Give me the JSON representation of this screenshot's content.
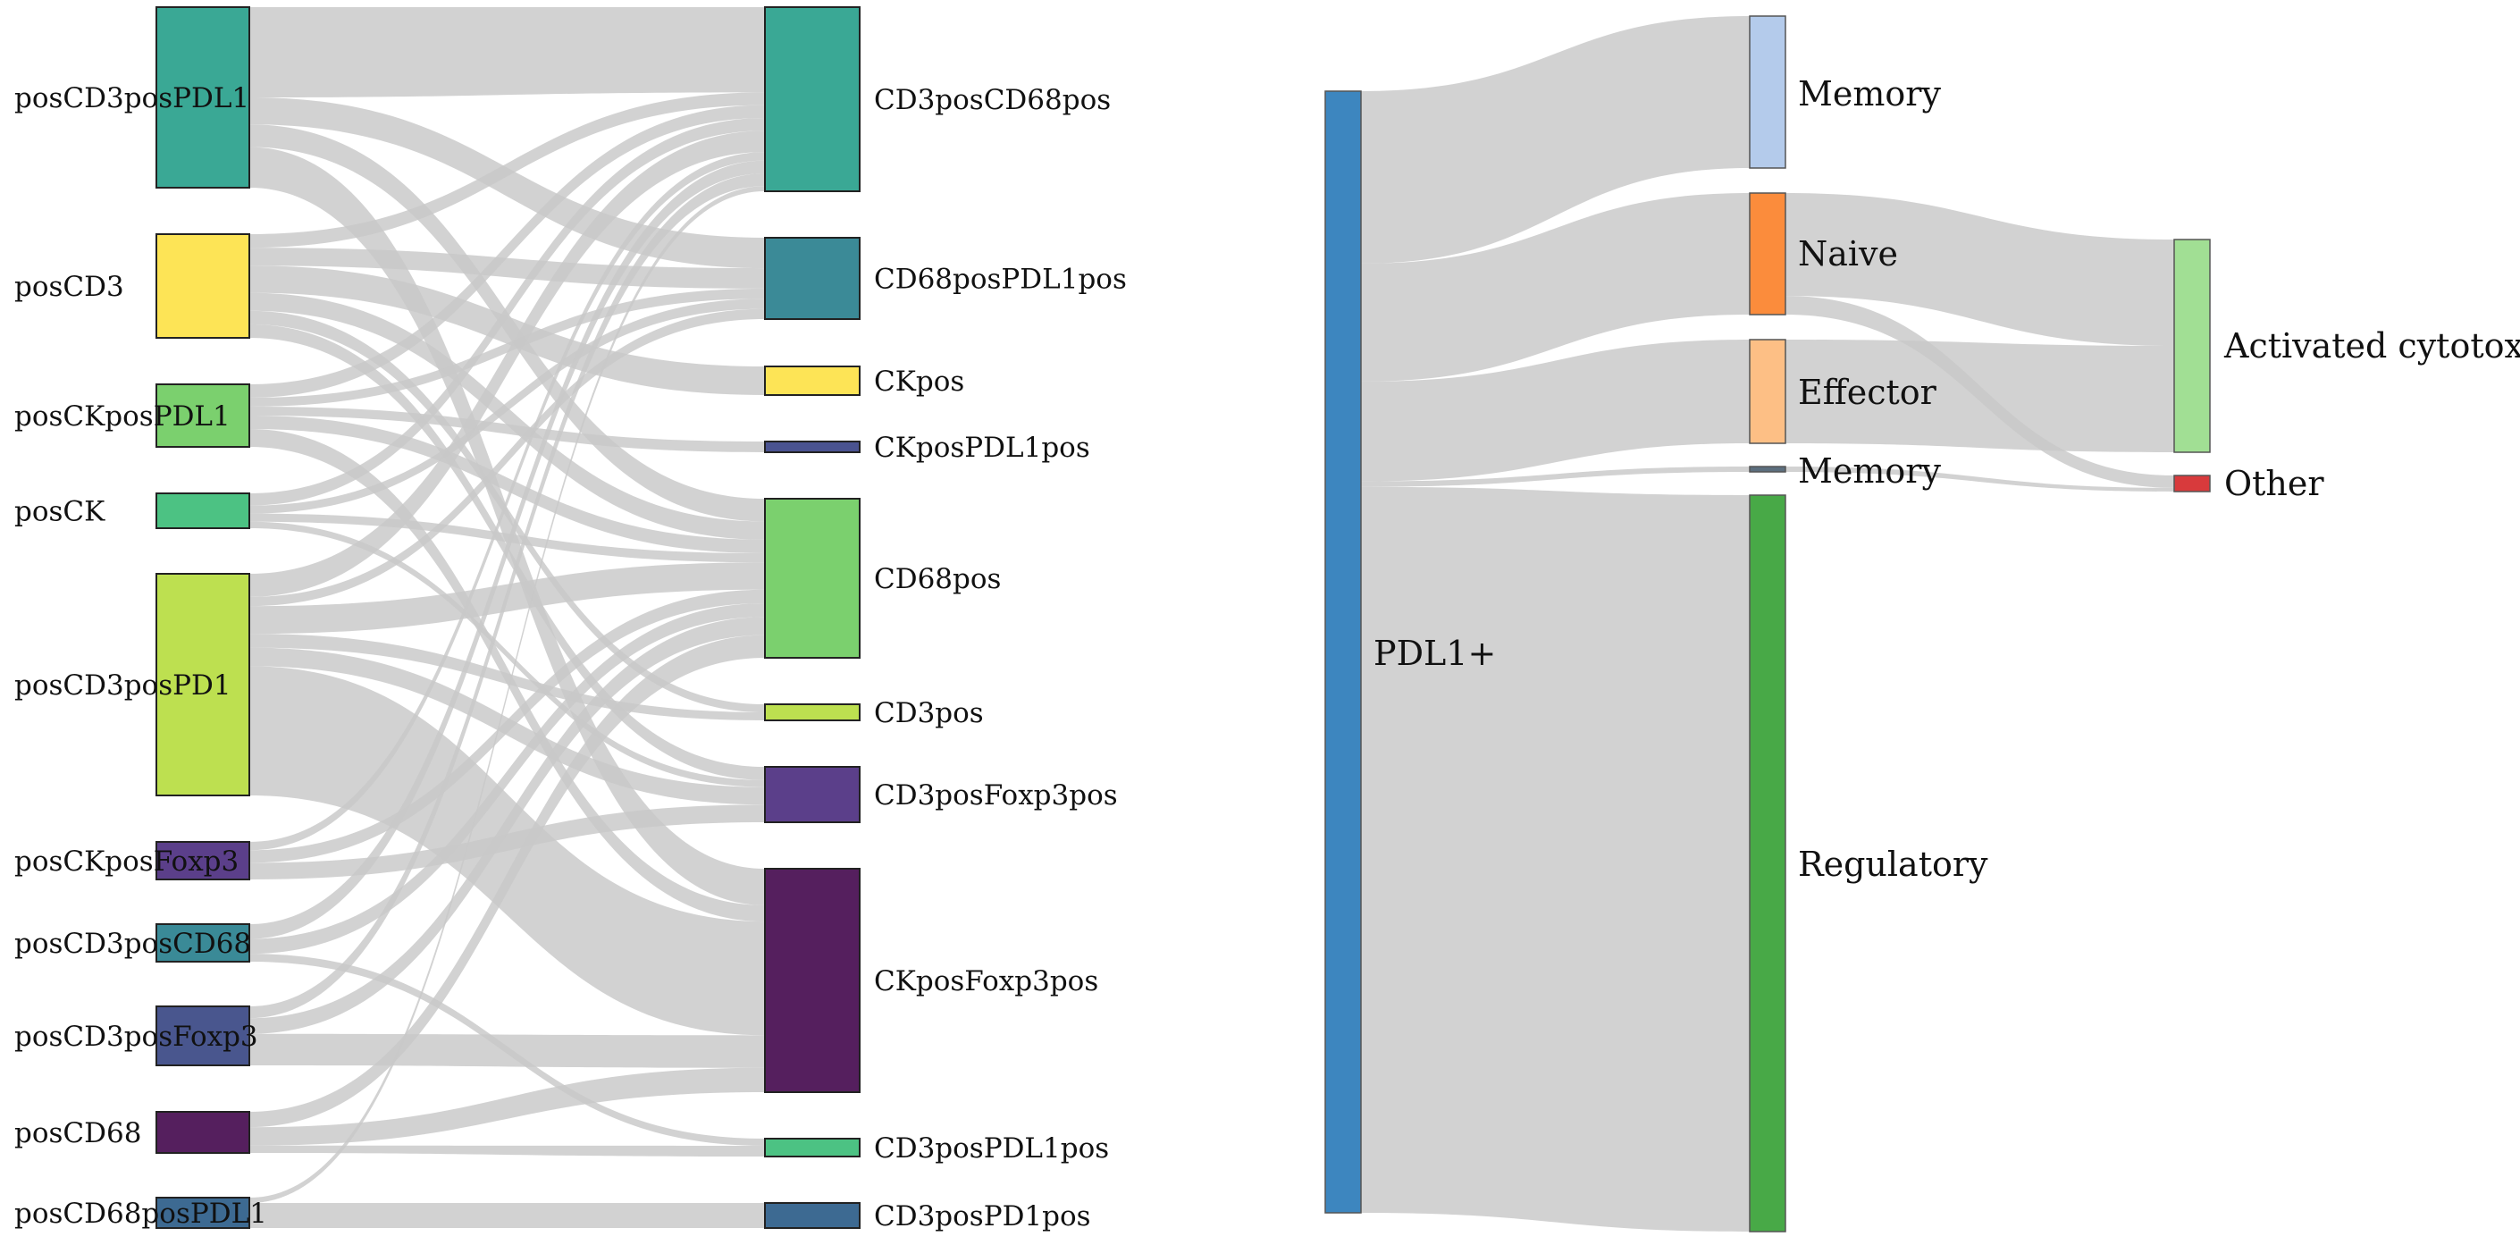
{
  "left_sankey": {
    "sources": [
      {
        "id": "s1",
        "label": "posCD3posPDL1",
        "color": "#3aa895"
      },
      {
        "id": "s2",
        "label": "posCD3",
        "color": "#fde456"
      },
      {
        "id": "s3",
        "label": "posCKposPDL1",
        "color": "#7bd06e"
      },
      {
        "id": "s4",
        "label": "posCK",
        "color": "#4cc283"
      },
      {
        "id": "s5",
        "label": "posCD3posPD1",
        "color": "#bde050"
      },
      {
        "id": "s6",
        "label": "posCKposFoxp3",
        "color": "#5b3f8a"
      },
      {
        "id": "s7",
        "label": "posCD3posCD68",
        "color": "#3a8a97"
      },
      {
        "id": "s8",
        "label": "posCD3posFoxp3",
        "color": "#49568e"
      },
      {
        "id": "s9",
        "label": "posCD68",
        "color": "#551f5e"
      },
      {
        "id": "s10",
        "label": "posCD68posPDL1",
        "color": "#3d6a92"
      }
    ],
    "targets": [
      {
        "id": "t1",
        "label": "CD3posCD68pos",
        "color": "#3aa895"
      },
      {
        "id": "t2",
        "label": "CD68posPDL1pos",
        "color": "#3b8a97"
      },
      {
        "id": "t3",
        "label": "CKpos",
        "color": "#fde456"
      },
      {
        "id": "t4",
        "label": "CKposPDL1pos",
        "color": "#4a5390"
      },
      {
        "id": "t5",
        "label": "CD68pos",
        "color": "#7bd06e"
      },
      {
        "id": "t6",
        "label": "CD3pos",
        "color": "#bde050"
      },
      {
        "id": "t7",
        "label": "CD3posFoxp3pos",
        "color": "#5b3f8a"
      },
      {
        "id": "t8",
        "label": "CKposFoxp3pos",
        "color": "#551f5e"
      },
      {
        "id": "t9",
        "label": "CD3posPDL1pos",
        "color": "#4cc283"
      },
      {
        "id": "t10",
        "label": "CD3posPD1pos",
        "color": "#3d6a92"
      }
    ],
    "links": [
      [
        "s1",
        "t1",
        10.0
      ],
      [
        "s1",
        "t2",
        3.0
      ],
      [
        "s1",
        "t5",
        2.5
      ],
      [
        "s1",
        "t8",
        4.5
      ],
      [
        "s2",
        "t1",
        1.5
      ],
      [
        "s2",
        "t2",
        2.0
      ],
      [
        "s2",
        "t3",
        3.0
      ],
      [
        "s2",
        "t5",
        2.0
      ],
      [
        "s2",
        "t6",
        1.5
      ],
      [
        "s2",
        "t7",
        1.5
      ],
      [
        "s3",
        "t1",
        1.5
      ],
      [
        "s3",
        "t2",
        1.0
      ],
      [
        "s3",
        "t4",
        1.0
      ],
      [
        "s3",
        "t5",
        1.5
      ],
      [
        "s3",
        "t8",
        2.0
      ],
      [
        "s4",
        "t1",
        1.5
      ],
      [
        "s4",
        "t2",
        1.0
      ],
      [
        "s4",
        "t5",
        1.0
      ],
      [
        "s4",
        "t7",
        0.8
      ],
      [
        "s5",
        "t1",
        2.5
      ],
      [
        "s5",
        "t2",
        1.0
      ],
      [
        "s5",
        "t5",
        3.0
      ],
      [
        "s5",
        "t6",
        1.5
      ],
      [
        "s5",
        "t7",
        2.0
      ],
      [
        "s5",
        "t8",
        14.0
      ],
      [
        "s6",
        "t1",
        1.0
      ],
      [
        "s6",
        "t5",
        1.5
      ],
      [
        "s6",
        "t7",
        2.0
      ],
      [
        "s7",
        "t1",
        1.5
      ],
      [
        "s7",
        "t5",
        1.5
      ],
      [
        "s7",
        "t9",
        0.8
      ],
      [
        "s8",
        "t1",
        1.5
      ],
      [
        "s8",
        "t5",
        2.0
      ],
      [
        "s8",
        "t8",
        4.0
      ],
      [
        "s9",
        "t5",
        2.5
      ],
      [
        "s9",
        "t8",
        3.0
      ],
      [
        "s9",
        "t9",
        1.2
      ],
      [
        "s10",
        "t1",
        0.6
      ],
      [
        "s10",
        "t10",
        2.8
      ]
    ]
  },
  "right_sankey": {
    "nodes": [
      {
        "id": "pdl1",
        "label": "PDL1+",
        "color": "#3d86bf"
      },
      {
        "id": "mem1",
        "label": "Memory",
        "color": "#b4cbeb"
      },
      {
        "id": "naive",
        "label": "Naive",
        "color": "#fb8c3c"
      },
      {
        "id": "eff",
        "label": "Effector",
        "color": "#fdbf85"
      },
      {
        "id": "mem2",
        "label": "Memory",
        "color": "#5c6e7e"
      },
      {
        "id": "reg",
        "label": "Regulatory",
        "color": "#48a947"
      },
      {
        "id": "act",
        "label": "Activated cytotoxic",
        "color": "#a1df94"
      },
      {
        "id": "other",
        "label": "Other",
        "color": "#d83a3c"
      }
    ],
    "links": [
      [
        "pdl1",
        "mem1",
        9.5
      ],
      [
        "pdl1",
        "naive",
        6.5
      ],
      [
        "pdl1",
        "eff",
        5.5
      ],
      [
        "pdl1",
        "mem2",
        0.3
      ],
      [
        "pdl1",
        "reg",
        40.0
      ],
      [
        "naive",
        "act",
        5.5
      ],
      [
        "naive",
        "other",
        1.0
      ],
      [
        "eff",
        "act",
        5.5
      ],
      [
        "mem2",
        "other",
        0.3
      ]
    ]
  }
}
